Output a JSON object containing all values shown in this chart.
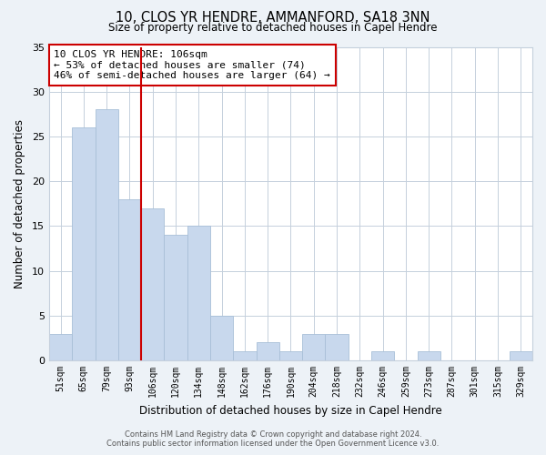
{
  "title": "10, CLOS YR HENDRE, AMMANFORD, SA18 3NN",
  "subtitle": "Size of property relative to detached houses in Capel Hendre",
  "xlabel": "Distribution of detached houses by size in Capel Hendre",
  "ylabel": "Number of detached properties",
  "bin_labels": [
    "51sqm",
    "65sqm",
    "79sqm",
    "93sqm",
    "106sqm",
    "120sqm",
    "134sqm",
    "148sqm",
    "162sqm",
    "176sqm",
    "190sqm",
    "204sqm",
    "218sqm",
    "232sqm",
    "246sqm",
    "259sqm",
    "273sqm",
    "287sqm",
    "301sqm",
    "315sqm",
    "329sqm"
  ],
  "bar_values": [
    3,
    26,
    28,
    18,
    17,
    14,
    15,
    5,
    1,
    2,
    1,
    3,
    3,
    0,
    1,
    0,
    1,
    0,
    0,
    0,
    1
  ],
  "bar_color": "#c8d8ed",
  "bar_edge_color": "#a8bfd8",
  "vline_x_idx": 4,
  "vline_color": "#cc0000",
  "annotation_title": "10 CLOS YR HENDRE: 106sqm",
  "annotation_line1": "← 53% of detached houses are smaller (74)",
  "annotation_line2": "46% of semi-detached houses are larger (64) →",
  "annotation_box_color": "#ffffff",
  "annotation_box_edge": "#cc0000",
  "ylim": [
    0,
    35
  ],
  "yticks": [
    0,
    5,
    10,
    15,
    20,
    25,
    30,
    35
  ],
  "footer_line1": "Contains HM Land Registry data © Crown copyright and database right 2024.",
  "footer_line2": "Contains public sector information licensed under the Open Government Licence v3.0.",
  "bg_color": "#edf2f7",
  "plot_bg_color": "#ffffff",
  "grid_color": "#c5d0dc"
}
